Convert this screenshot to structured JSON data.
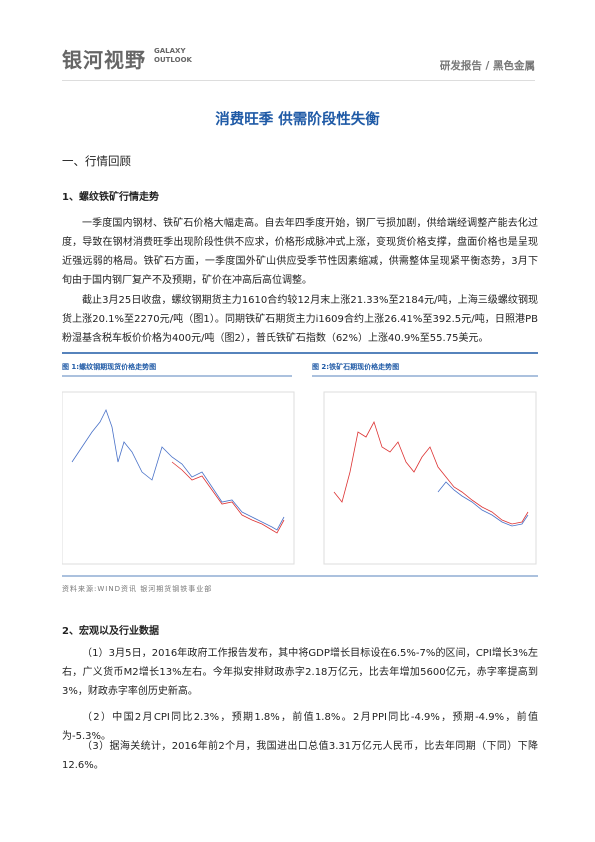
{
  "header": {
    "logo": "银河视野",
    "logo_en": "GALAXY OUTLOOK",
    "report_type": "研发报告 / 黑色金属"
  },
  "title": "消费旺季 供需阶段性失衡",
  "section1": {
    "heading": "一、行情回顾",
    "subheading": "1、螺纹铁矿行情走势",
    "paragraphs": [
      "一季度国内钢材、铁矿石价格大幅走高。自去年四季度开始，钢厂亏损加剧，供给端经调整产能去化过度，导致在钢材消费旺季出现阶段性供不应求，价格形成脉冲式上涨，变现货价格支撑，盘面价格也是呈现近强远弱的格局。铁矿石方面，一季度国外矿山供应受季节性因素缩减，供需整体呈现紧平衡态势，3月下旬由于国内钢厂复产不及预期，矿价在冲高后高位调整。",
      "截止3月25日收盘，螺纹钢期货主力1610合约较12月末上涨21.33%至2184元/吨，上海三级螺纹钢现货上涨20.1%至2270元/吨（图1）。同期铁矿石期货主力i1609合约上涨26.41%至392.5元/吨，日照港PB粉湿基含税车板价价格为400元/吨（图2），普氏铁矿石指数（62%）上涨40.9%至55.75美元。"
    ]
  },
  "figures": {
    "fig1_caption": "图 1:螺纹钢期现货价格走势图",
    "fig2_caption": "图 2:铁矿石期现价格走势图",
    "source": "资料来源:WIND资讯   银河期货钢铁事业部"
  },
  "section2": {
    "subheading": "2、宏观以及行业数据",
    "paragraphs": [
      "（1）3月5日，2016年政府工作报告发布，其中将GDP增长目标设在6.5%-7%的区间，CPI增长3%左右，广义货币M2增长13%左右。今年拟安排财政赤字2.18万亿元，比去年增加5600亿元，赤字率提高到3%，财政赤字率创历史新高。",
      "（2）中国2月CPI同比2.3%，预期1.8%，前值1.8%。2月PPI同比-4.9%，预期-4.9%，前值为-5.3%。",
      "（3）据海关统计，2016年前2个月，我国进出口总值3.31万亿元人民币，比去年同期（下同）下降12.6%。"
    ]
  }
}
